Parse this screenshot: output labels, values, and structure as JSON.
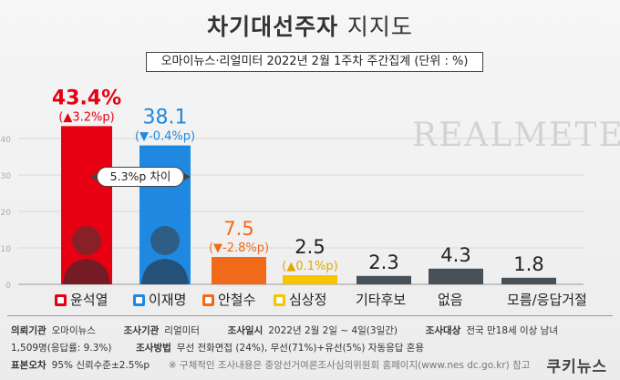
{
  "title_bold": "차기대선주자",
  "title_light": "지지도",
  "subtitle": "오마이뉴스·리얼미터 2022년 2월 1주차 주간집계 (단위 : %)",
  "watermark": "REALMETER",
  "gap_label": "5.3%p 차이",
  "colors": {
    "yoon": "#e60012",
    "lee": "#1f88e0",
    "ahn": "#f06a1a",
    "sim": "#f7c400",
    "other": "#485058",
    "accent_red": "#e60012"
  },
  "chart_data": {
    "type": "bar",
    "categories": [
      "윤석열",
      "이재명",
      "안철수",
      "심상정",
      "기타후보",
      "없음",
      "모름/응답거절"
    ],
    "values": [
      43.4,
      38.1,
      7.5,
      2.5,
      2.3,
      4.3,
      1.8
    ],
    "value_labels": [
      "43.4%",
      "38.1",
      "7.5",
      "2.5",
      "2.3",
      "4.3",
      "1.8"
    ],
    "change_labels": [
      "(▲3.2%p)",
      "(▼-0.4%p)",
      "(▼-2.8%p)",
      "(▲0.1%p)",
      "",
      "",
      ""
    ],
    "ylim": [
      0,
      45
    ],
    "yticks": [
      0,
      10,
      20,
      30,
      40
    ]
  },
  "legend": [
    {
      "label": "윤석열",
      "icon": "party-ppp-icon"
    },
    {
      "label": "이재명",
      "icon": "party-dp-icon"
    },
    {
      "label": "안철수",
      "icon": "party-pp-icon"
    },
    {
      "label": "심상정",
      "icon": "party-justice-icon"
    },
    {
      "label": "기타후보",
      "icon": ""
    },
    {
      "label": "없음",
      "icon": ""
    },
    {
      "label": "모름/응답거절",
      "icon": ""
    }
  ],
  "meta": {
    "client_label": "의뢰기관",
    "client_value": "오마이뉴스",
    "agency_label": "조사기관",
    "agency_value": "리얼미터",
    "date_label": "조사일시",
    "date_value": "2022년 2월 2일 ~ 4일(3일간)",
    "target_label": "조사대상",
    "target_value": "전국 만18세 이상 남녀",
    "sample_value": "1,509명(응답률: 9.3%)",
    "method_label": "조사방법",
    "method_value": "무선 전화면접 (24%), 무선(71%)+유선(5%) 자동응답 혼용",
    "error_label": "표본오차",
    "error_value": "95% 신뢰수준±2.5%p",
    "note": "※ 구체적인 조사내용은 중앙선거여론조사심의위원회 홈페이지(www.nes dc.go.kr) 참고"
  },
  "logo": "쿠키뉴스"
}
